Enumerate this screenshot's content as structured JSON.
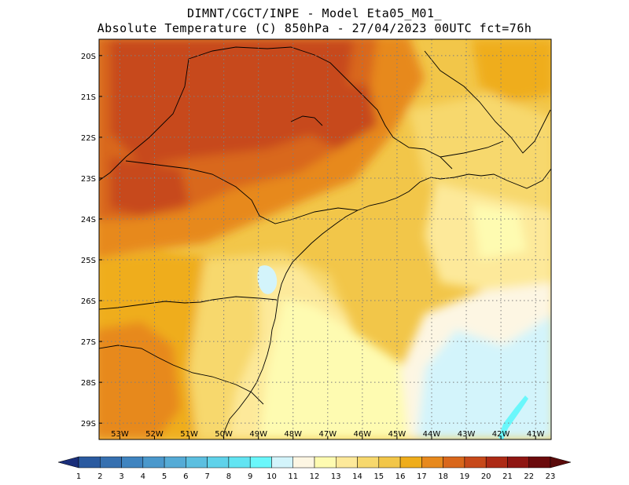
{
  "header": {
    "line1": "DIMNT/CGCT/INPE -  Model Eta05_M01_",
    "line2": "Absolute Temperature (C) 850hPa -  27/04/2023 00UTC fct=76h"
  },
  "axes": {
    "lat_labels": [
      "20S",
      "21S",
      "22S",
      "23S",
      "24S",
      "25S",
      "26S",
      "27S",
      "28S",
      "29S"
    ],
    "lat_values": [
      -20,
      -21,
      -22,
      -23,
      -24,
      -25,
      -26,
      -27,
      -28,
      -29
    ],
    "lon_labels": [
      "53W",
      "52W",
      "51W",
      "50W",
      "49W",
      "48W",
      "47W",
      "46W",
      "45W",
      "44W",
      "43W",
      "42W",
      "41W"
    ],
    "lon_values": [
      -53,
      -52,
      -51,
      -50,
      -49,
      -48,
      -47,
      -46,
      -45,
      -44,
      -43,
      -42,
      -41
    ],
    "lat_range": [
      -29.4,
      -19.6
    ],
    "lon_range": [
      -53.6,
      -40.55
    ],
    "grid": "dotted"
  },
  "colorbar": {
    "labels": [
      "1",
      "2",
      "3",
      "4",
      "5",
      "6",
      "7",
      "8",
      "9",
      "10",
      "11",
      "12",
      "13",
      "14",
      "15",
      "16",
      "17",
      "18",
      "19",
      "20",
      "21",
      "22",
      "23"
    ],
    "colors": [
      "#1f3f8f",
      "#2a5aa0",
      "#3670b0",
      "#3f84c0",
      "#4a98cc",
      "#55abd6",
      "#5cbfe0",
      "#5fd2ea",
      "#62e4f2",
      "#6af7fb",
      "#d3f4fb",
      "#fdf6e3",
      "#fefbb1",
      "#fde99a",
      "#f7d86d",
      "#f2c649",
      "#efad1b",
      "#e7891d",
      "#d9671b",
      "#c7491a",
      "#ad2a15",
      "#8f1612",
      "#6b0a0c"
    ],
    "left_arrow_color": "#1a2e7a",
    "right_arrow_color": "#5a0a0a"
  },
  "map": {
    "background_color": "#f2c649"
  }
}
